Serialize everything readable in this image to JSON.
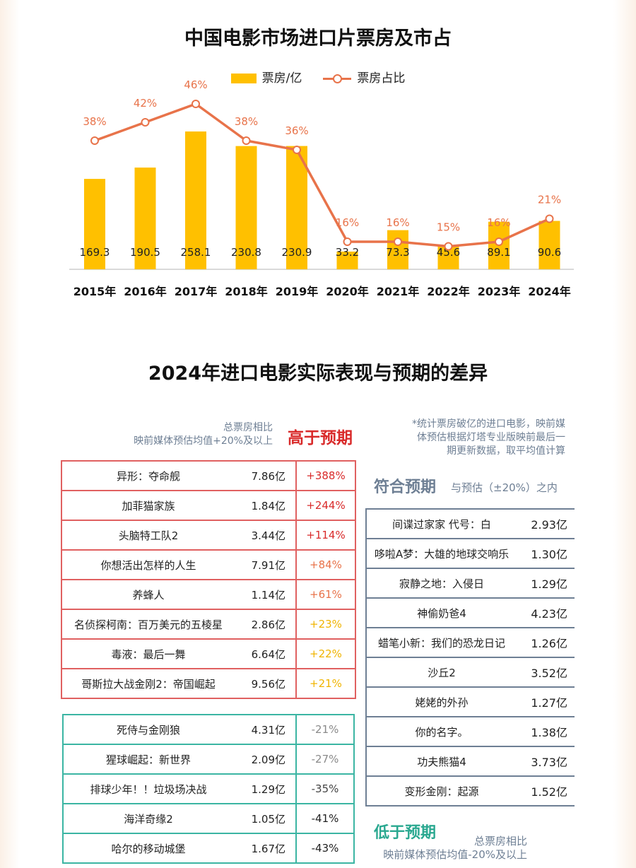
{
  "chart_data": {
    "type": "bar",
    "title": "中国电影市场进口片票房及市占",
    "categories": [
      "2015年",
      "2016年",
      "2017年",
      "2018年",
      "2019年",
      "2020年",
      "2021年",
      "2022年",
      "2023年",
      "2024年"
    ],
    "series": [
      {
        "name": "票房/亿",
        "type": "bar",
        "values": [
          169.3,
          190.5,
          258.1,
          230.8,
          230.9,
          33.2,
          73.3,
          45.6,
          89.1,
          90.6
        ],
        "labels": [
          "169.3",
          "190.5",
          "258.1",
          "230.8",
          "230.9",
          "33.2",
          "73.3",
          "45.6",
          "89.1",
          "90.6"
        ],
        "color": "#ffc000"
      },
      {
        "name": "票房占比",
        "type": "line",
        "values": [
          38,
          42,
          46,
          38,
          36,
          16,
          16,
          15,
          16,
          21
        ],
        "labels": [
          "38%",
          "42%",
          "46%",
          "38%",
          "36%",
          "16%",
          "16%",
          "15%",
          "16%",
          "21%"
        ],
        "color": "#e8734a"
      }
    ]
  },
  "section2": {
    "title": "2024年进口电影实际表现与预期的差异",
    "note": [
      "*统计票房破亿的进口电影，映前媒",
      "体预估根据灯塔专业版映前最后一",
      "期更新数据，取平均值计算"
    ],
    "higher": {
      "label": "高于预期",
      "desc": [
        "总票房相比",
        "映前媒体预估均值+20%及以上"
      ],
      "rows": [
        {
          "name": "异形：夺命舰",
          "value": "7.86亿",
          "pct": "+388%",
          "color": "#d92b2b"
        },
        {
          "name": "加菲猫家族",
          "value": "1.84亿",
          "pct": "+244%",
          "color": "#d92b2b"
        },
        {
          "name": "头脑特工队2",
          "value": "3.44亿",
          "pct": "+114%",
          "color": "#d92b2b"
        },
        {
          "name": "你想活出怎样的人生",
          "value": "7.91亿",
          "pct": "+84%",
          "color": "#e8734a"
        },
        {
          "name": "养蜂人",
          "value": "1.14亿",
          "pct": "+61%",
          "color": "#e8734a"
        },
        {
          "name": "名侦探柯南：百万美元的五棱星",
          "value": "2.86亿",
          "pct": "+23%",
          "color": "#f0b400"
        },
        {
          "name": "毒液：最后一舞",
          "value": "6.64亿",
          "pct": "+22%",
          "color": "#f0b400"
        },
        {
          "name": "哥斯拉大战金刚2：帝国崛起",
          "value": "9.56亿",
          "pct": "+21%",
          "color": "#f0b400"
        }
      ]
    },
    "match": {
      "label": "符合预期",
      "desc": "与预估（±20%）之内",
      "rows": [
        {
          "name": "间谍过家家 代号：白",
          "value": "2.93亿"
        },
        {
          "name": "哆啦A梦：大雄的地球交响乐",
          "value": "1.30亿"
        },
        {
          "name": "寂静之地：入侵日",
          "value": "1.29亿"
        },
        {
          "name": "神偷奶爸4",
          "value": "4.23亿"
        },
        {
          "name": "蜡笔小新：我们的恐龙日记",
          "value": "1.26亿"
        },
        {
          "name": "沙丘2",
          "value": "3.52亿"
        },
        {
          "name": "姥姥的外孙",
          "value": "1.27亿"
        },
        {
          "name": "你的名字。",
          "value": "1.38亿"
        },
        {
          "name": "功夫熊猫4",
          "value": "3.73亿"
        },
        {
          "name": "变形金刚：起源",
          "value": "1.52亿"
        }
      ]
    },
    "lower": {
      "label": "低于预期",
      "desc": [
        "总票房相比",
        "映前媒体预估均值-20%及以上"
      ],
      "rows": [
        {
          "name": "死侍与金刚狼",
          "value": "4.31亿",
          "pct": "-21%",
          "color": "#8a8a8a"
        },
        {
          "name": "猩球崛起：新世界",
          "value": "2.09亿",
          "pct": "-27%",
          "color": "#8a8a8a"
        },
        {
          "name": "排球少年！！垃圾场决战",
          "value": "1.29亿",
          "pct": "-35%",
          "color": "#444444"
        },
        {
          "name": "海洋奇缘2",
          "value": "1.05亿",
          "pct": "-41%",
          "color": "#222222"
        },
        {
          "name": "哈尔的移动城堡",
          "value": "1.67亿",
          "pct": "-43%",
          "color": "#222222"
        }
      ]
    }
  }
}
